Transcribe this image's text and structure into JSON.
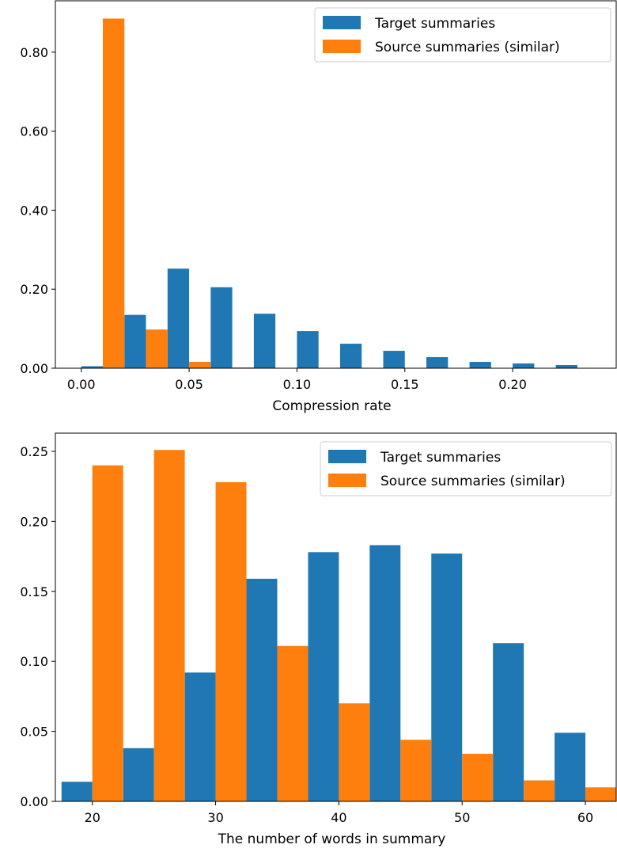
{
  "chart_data": [
    {
      "type": "bar",
      "title": "",
      "xlabel": "Compression rate",
      "ylabel": "",
      "xlim": [
        -0.012,
        0.248
      ],
      "ylim": [
        0,
        0.93
      ],
      "bin_width": 0.02,
      "bin_starts": [
        0.0,
        0.02,
        0.04,
        0.06,
        0.08,
        0.1,
        0.12,
        0.14,
        0.16,
        0.18,
        0.2,
        0.22
      ],
      "x_ticks": [
        0.0,
        0.05,
        0.1,
        0.15,
        0.2
      ],
      "x_tick_labels": [
        "0.00",
        "0.05",
        "0.10",
        "0.15",
        "0.20"
      ],
      "y_ticks": [
        0.0,
        0.2,
        0.4,
        0.6,
        0.8
      ],
      "y_tick_labels": [
        "0.00",
        "0.20",
        "0.40",
        "0.60",
        "0.80"
      ],
      "grid": false,
      "legend_position": "top-right",
      "series": [
        {
          "name": "Target summaries",
          "color": "#1f77b4",
          "values": [
            0.005,
            0.135,
            0.252,
            0.205,
            0.138,
            0.094,
            0.062,
            0.044,
            0.028,
            0.016,
            0.012,
            0.008
          ]
        },
        {
          "name": "Source summaries (similar)",
          "color": "#ff7f0e",
          "values": [
            0.885,
            0.098,
            0.016,
            0.002,
            0.0,
            0.0,
            0.0,
            0.0,
            0.0,
            0.0,
            0.0,
            0.0
          ]
        }
      ]
    },
    {
      "type": "bar",
      "title": "",
      "xlabel": "The number of words in summary",
      "ylabel": "",
      "xlim": [
        17,
        62.5
      ],
      "ylim": [
        0,
        0.263
      ],
      "bin_width": 5,
      "bin_starts": [
        17.5,
        22.5,
        27.5,
        32.5,
        37.5,
        42.5,
        47.5,
        52.5,
        57.5
      ],
      "x_ticks": [
        20,
        30,
        40,
        50,
        60
      ],
      "x_tick_labels": [
        "20",
        "30",
        "40",
        "50",
        "60"
      ],
      "y_ticks": [
        0.0,
        0.05,
        0.1,
        0.15,
        0.2,
        0.25
      ],
      "y_tick_labels": [
        "0.00",
        "0.05",
        "0.10",
        "0.15",
        "0.20",
        "0.25"
      ],
      "grid": false,
      "legend_position": "top-right",
      "series": [
        {
          "name": "Target summaries",
          "color": "#1f77b4",
          "values": [
            0.014,
            0.038,
            0.092,
            0.159,
            0.178,
            0.183,
            0.177,
            0.113,
            0.049
          ]
        },
        {
          "name": "Source summaries (similar)",
          "color": "#ff7f0e",
          "values": [
            0.24,
            0.251,
            0.228,
            0.111,
            0.07,
            0.044,
            0.034,
            0.015,
            0.01
          ]
        }
      ]
    }
  ]
}
